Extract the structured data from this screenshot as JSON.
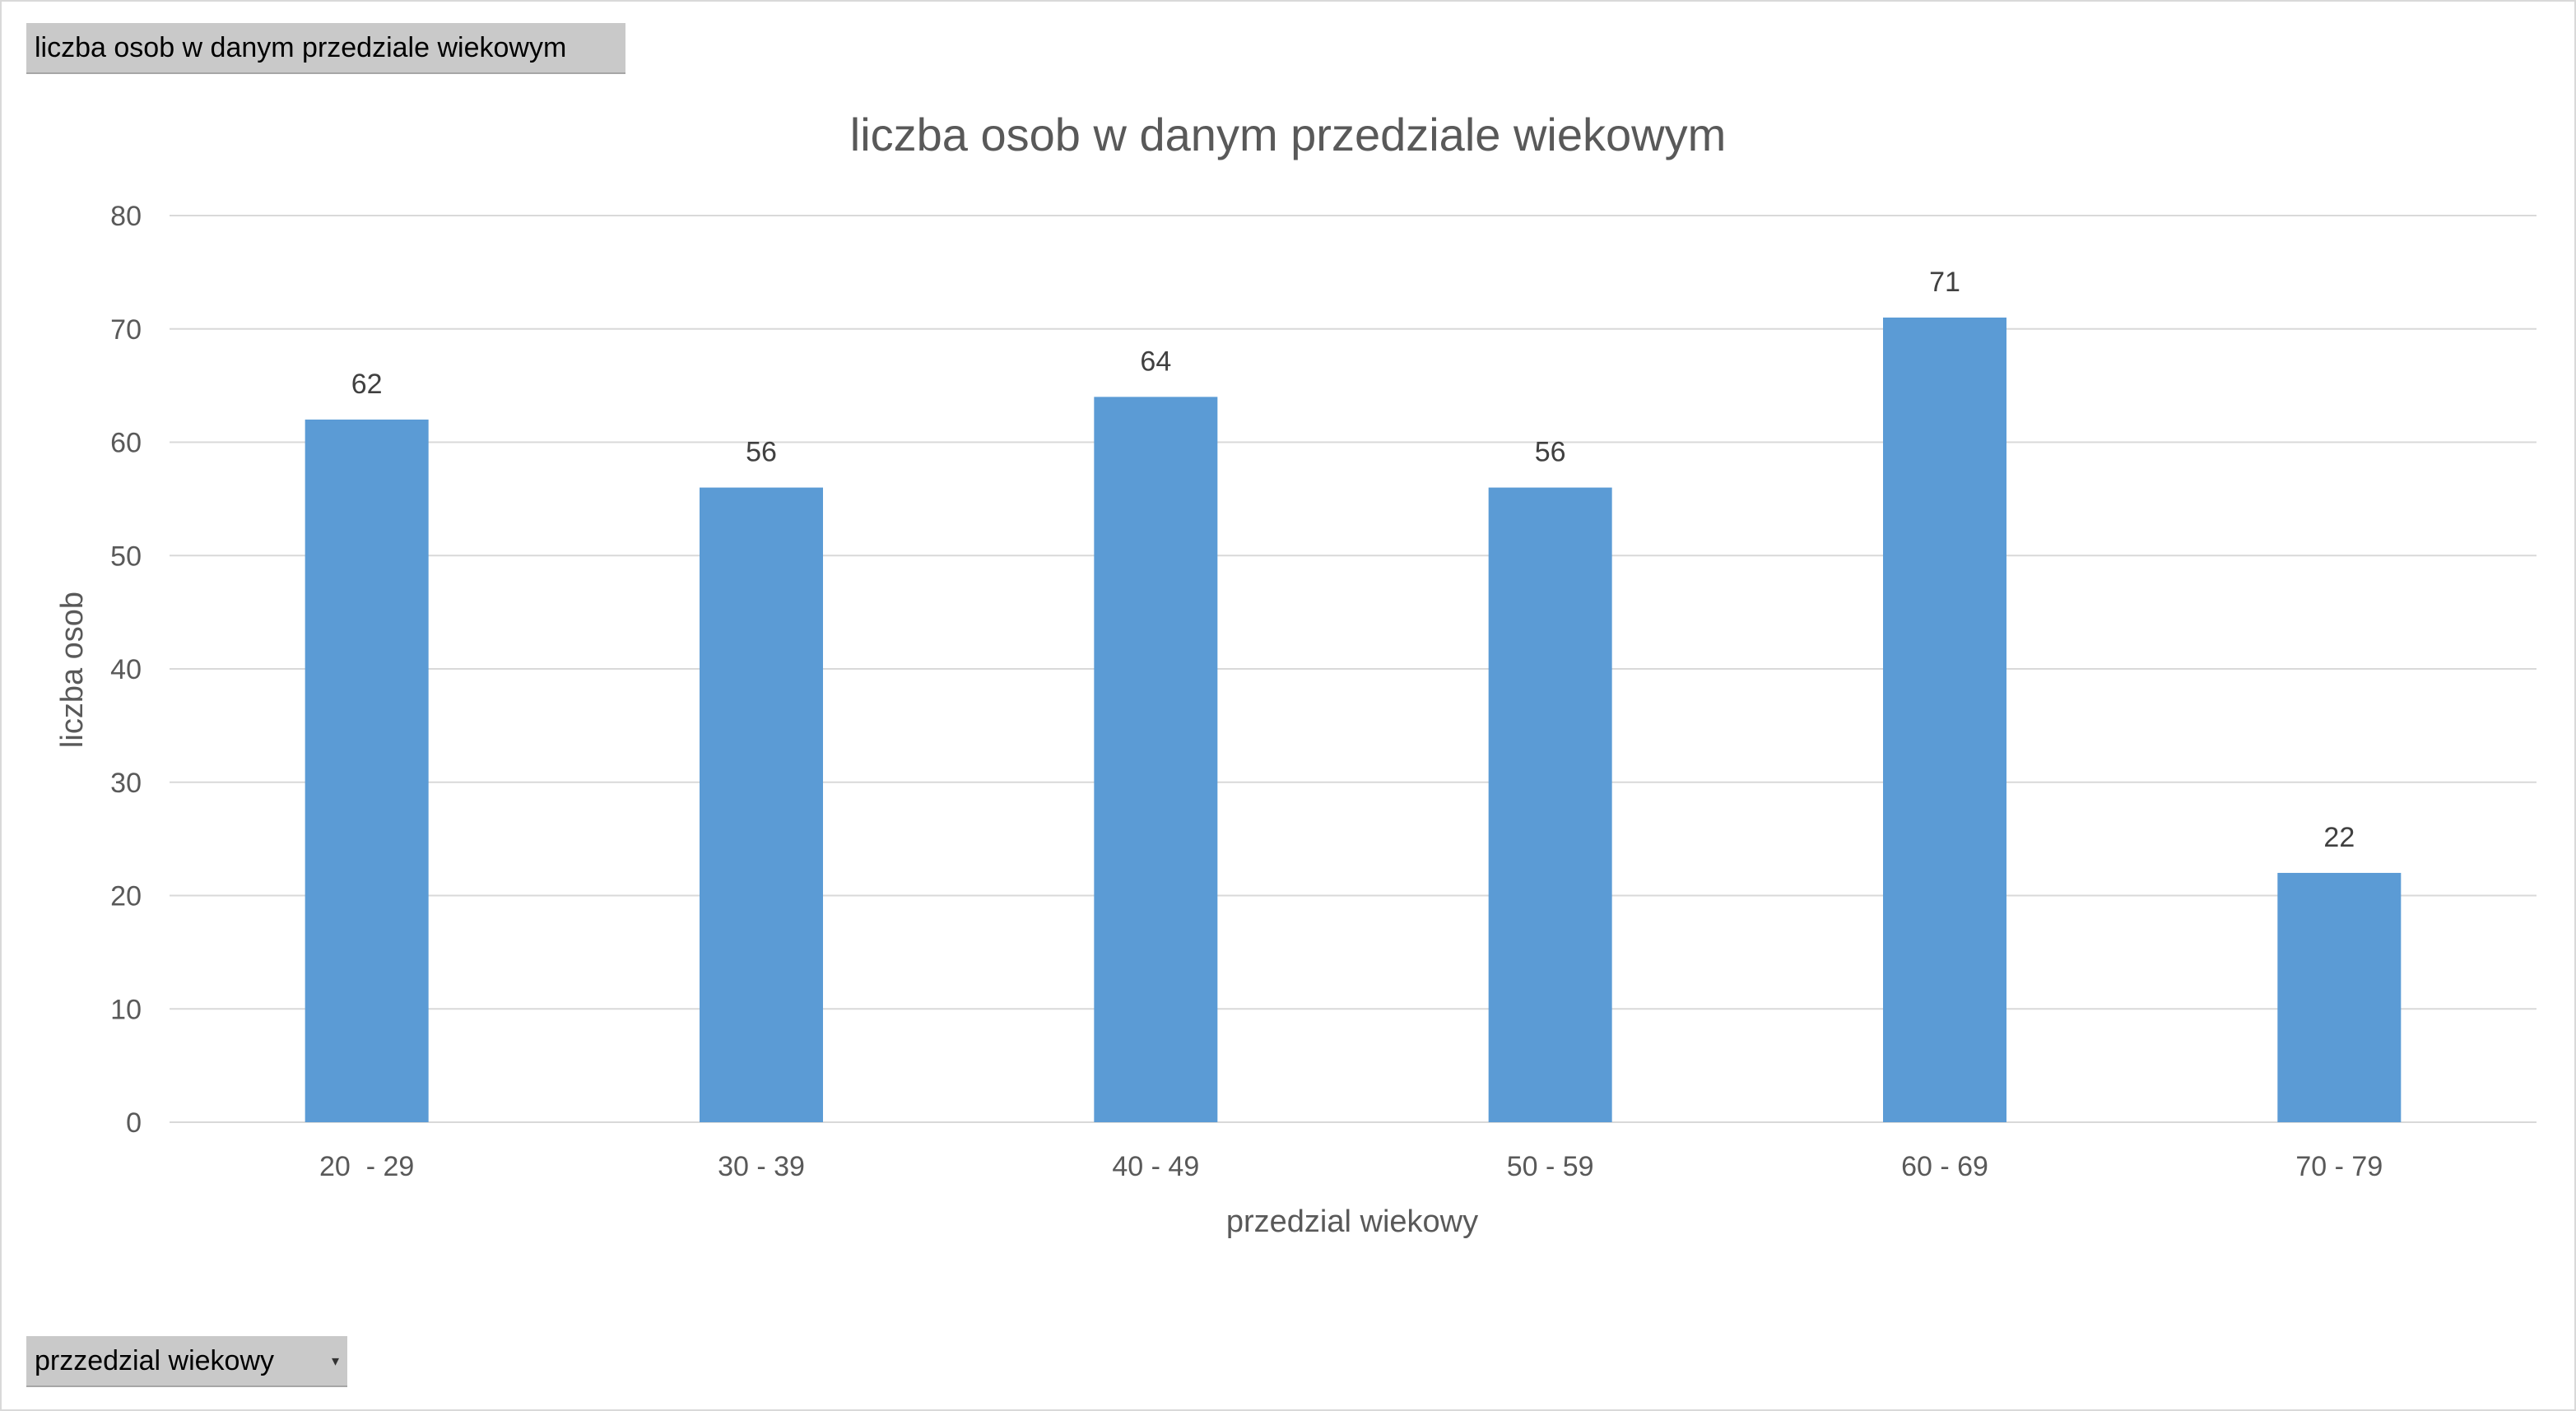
{
  "pivot": {
    "value_field_label": "liczba osob w danym przedziale wiekowym",
    "axis_field_label": "przzedzial wiekowy"
  },
  "chart_data": {
    "type": "bar",
    "title": "liczba osob w danym przedziale wiekowym",
    "xlabel": "przedzial wiekowy",
    "ylabel": "liczba osob",
    "categories": [
      "20  - 29",
      "30 - 39",
      "40 - 49",
      "50 - 59",
      "60 - 69",
      "70 - 79"
    ],
    "values": [
      62,
      56,
      64,
      56,
      71,
      22
    ],
    "ylim": [
      0,
      80
    ],
    "yticks": [
      0,
      10,
      20,
      30,
      40,
      50,
      60,
      70,
      80
    ],
    "grid": true,
    "bar_color": "#5b9bd5",
    "gridline_color": "#d9d9d9",
    "data_labels": true
  }
}
